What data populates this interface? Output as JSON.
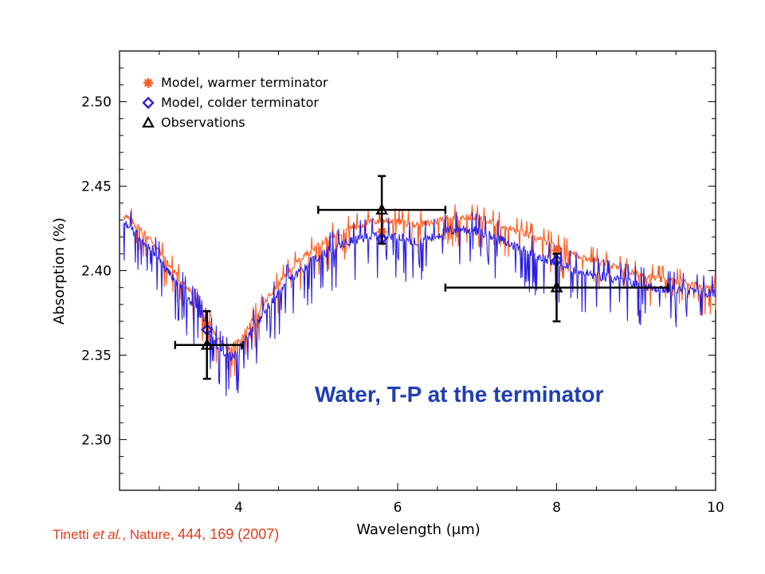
{
  "chart_data": {
    "type": "line",
    "xlabel": "Wavelength (μm)",
    "ylabel": "Absorption (%)",
    "xlim": [
      2.5,
      10
    ],
    "ylim": [
      2.27,
      2.53
    ],
    "x_ticks": [
      "4",
      "6",
      "8",
      "10"
    ],
    "x_tick_values": [
      4,
      6,
      8,
      10
    ],
    "y_ticks": [
      "2.30",
      "2.35",
      "2.40",
      "2.45",
      "2.50"
    ],
    "y_tick_values": [
      2.3,
      2.35,
      2.4,
      2.45,
      2.5
    ],
    "grid": false,
    "legend_position": "top-left",
    "legend": [
      {
        "label": "Model, warmer terminator",
        "marker": "asterisk",
        "color": "#ff5a1f"
      },
      {
        "label": "Model, colder terminator",
        "marker": "diamond",
        "color": "#2a1fe0"
      },
      {
        "label": "Observations",
        "marker": "triangle",
        "color": "#000000"
      }
    ],
    "series": [
      {
        "legend_index": 0,
        "color": "#ff5a1f",
        "x": [
          2.55,
          2.7,
          2.9,
          3.1,
          3.3,
          3.5,
          3.6,
          3.7,
          3.8,
          3.9,
          4.0,
          4.2,
          4.4,
          4.6,
          4.8,
          5.0,
          5.2,
          5.4,
          5.6,
          5.8,
          6.0,
          6.2,
          6.4,
          6.6,
          6.8,
          7.0,
          7.2,
          7.4,
          7.6,
          7.8,
          8.0,
          8.2,
          8.4,
          8.6,
          8.8,
          9.0,
          9.2,
          9.4,
          9.6,
          9.8,
          10.0
        ],
        "y": [
          2.433,
          2.427,
          2.418,
          2.405,
          2.393,
          2.38,
          2.37,
          2.362,
          2.356,
          2.354,
          2.358,
          2.372,
          2.386,
          2.398,
          2.408,
          2.415,
          2.421,
          2.425,
          2.428,
          2.43,
          2.429,
          2.427,
          2.428,
          2.431,
          2.432,
          2.431,
          2.428,
          2.425,
          2.422,
          2.418,
          2.414,
          2.41,
          2.407,
          2.404,
          2.401,
          2.398,
          2.396,
          2.394,
          2.393,
          2.391,
          2.39
        ]
      },
      {
        "legend_index": 1,
        "color": "#2a1fe0",
        "x": [
          2.55,
          2.7,
          2.9,
          3.1,
          3.3,
          3.5,
          3.6,
          3.7,
          3.8,
          3.9,
          4.0,
          4.2,
          4.4,
          4.6,
          4.8,
          5.0,
          5.2,
          5.4,
          5.6,
          5.8,
          6.0,
          6.2,
          6.4,
          6.6,
          6.8,
          7.0,
          7.2,
          7.4,
          7.6,
          7.8,
          8.0,
          8.2,
          8.4,
          8.6,
          8.8,
          9.0,
          9.2,
          9.4,
          9.6,
          9.8,
          10.0
        ],
        "y": [
          2.428,
          2.422,
          2.413,
          2.4,
          2.388,
          2.375,
          2.366,
          2.358,
          2.351,
          2.349,
          2.353,
          2.367,
          2.38,
          2.392,
          2.401,
          2.408,
          2.413,
          2.417,
          2.42,
          2.421,
          2.42,
          2.417,
          2.419,
          2.423,
          2.425,
          2.423,
          2.42,
          2.416,
          2.412,
          2.408,
          2.404,
          2.401,
          2.398,
          2.396,
          2.394,
          2.392,
          2.39,
          2.389,
          2.388,
          2.387,
          2.386
        ]
      }
    ],
    "model_points": [
      {
        "legend_index": 0,
        "x": 3.6,
        "y": 2.368
      },
      {
        "legend_index": 0,
        "x": 5.8,
        "y": 2.423
      },
      {
        "legend_index": 0,
        "x": 8.0,
        "y": 2.412
      },
      {
        "legend_index": 1,
        "x": 3.6,
        "y": 2.365
      },
      {
        "legend_index": 1,
        "x": 5.8,
        "y": 2.419
      },
      {
        "legend_index": 1,
        "x": 8.0,
        "y": 2.406
      }
    ],
    "observations": [
      {
        "x": 3.6,
        "y": 2.356,
        "xerr_low": 3.2,
        "xerr_high": 4.05,
        "yerr_low": 2.336,
        "yerr_high": 2.376
      },
      {
        "x": 5.8,
        "y": 2.436,
        "xerr_low": 5.0,
        "xerr_high": 6.6,
        "yerr_low": 2.416,
        "yerr_high": 2.456
      },
      {
        "x": 8.0,
        "y": 2.39,
        "xerr_low": 6.6,
        "xerr_high": 9.4,
        "yerr_low": 2.37,
        "yerr_high": 2.41
      }
    ],
    "annotation": "Water, T-P at the terminator"
  },
  "citation": {
    "author": "Tinetti ",
    "etal": "et al.",
    "journal": ", Nature, ",
    "ref": "444, 169 (2007)"
  }
}
